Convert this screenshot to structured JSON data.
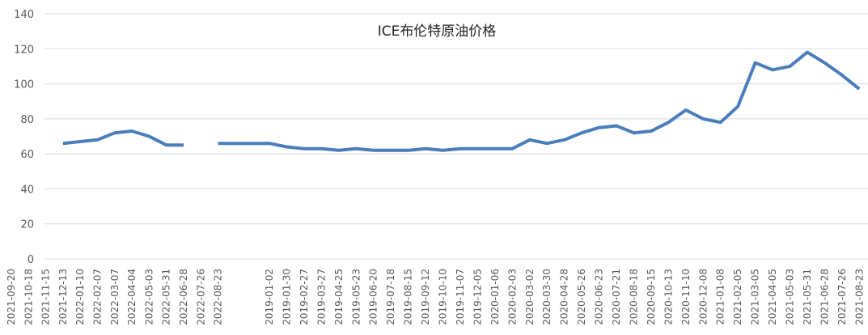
{
  "chart_data": {
    "type": "line",
    "title": "ICE布伦特原油价格",
    "categories": [
      "2021-09-20",
      "2021-10-18",
      "2021-11-15",
      "2021-12-13",
      "2022-01-10",
      "2022-02-07",
      "2022-03-07",
      "2022-04-04",
      "2022-05-03",
      "2022-05-31",
      "2022-06-28",
      "2022-07-26",
      "2022-08-23",
      "2019-01-02",
      "2019-01-30",
      "2019-02-27",
      "2019-03-27",
      "2019-04-25",
      "2019-05-23",
      "2019-06-20",
      "2019-07-18",
      "2019-08-15",
      "2019-09-12",
      "2019-10-10",
      "2019-11-07",
      "2019-12-05",
      "2020-01-06",
      "2020-02-03",
      "2020-03-02",
      "2020-03-30",
      "2020-04-28",
      "2020-05-26",
      "2020-06-23",
      "2020-07-21",
      "2020-08-18",
      "2020-09-15",
      "2020-10-13",
      "2020-11-10",
      "2020-12-08",
      "2021-01-08",
      "2021-02-05",
      "2021-03-05",
      "2021-04-05",
      "2021-05-03",
      "2021-05-31",
      "2021-06-28",
      "2021-07-26",
      "2021-08-23"
    ],
    "series": [
      {
        "name": "ICE布伦特原油价格",
        "color": "#4a7ebb",
        "values": [
          null,
          null,
          null,
          66,
          67,
          68,
          72,
          73,
          70,
          65,
          65,
          null,
          66,
          66,
          64,
          63,
          63,
          62,
          63,
          62,
          62,
          62,
          63,
          62,
          63,
          63,
          63,
          63,
          68,
          66,
          68,
          72,
          75,
          76,
          72,
          73,
          78,
          85,
          80,
          78,
          87,
          112,
          108,
          110,
          118,
          112,
          105,
          97
        ]
      }
    ],
    "ylim": [
      0,
      140
    ],
    "yticks": [
      0,
      20,
      40,
      60,
      80,
      100,
      120,
      140
    ],
    "grid": true
  }
}
